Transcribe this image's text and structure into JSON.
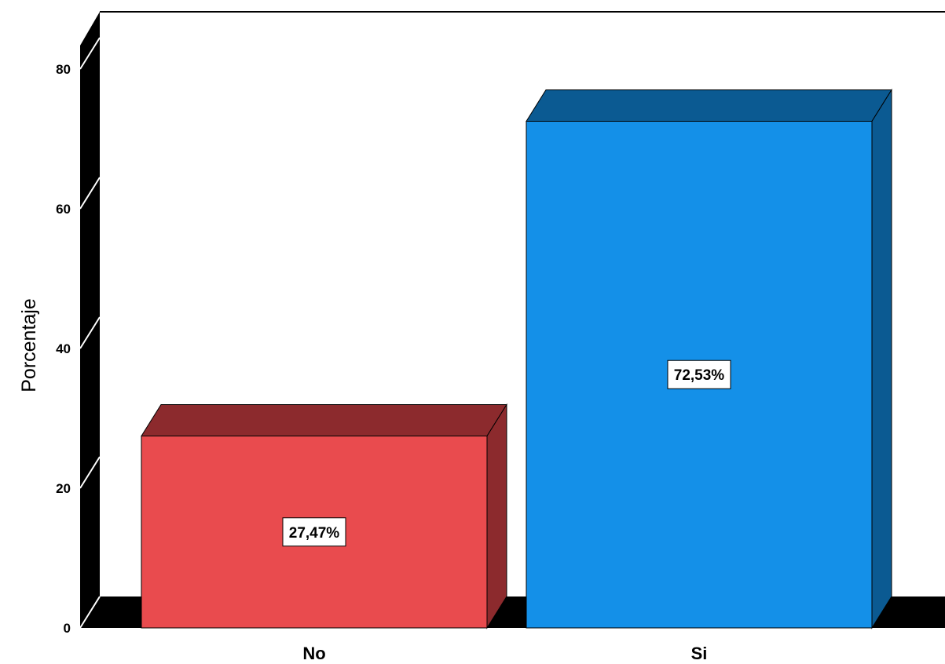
{
  "chart_data": {
    "type": "bar",
    "style": "3d",
    "categories": [
      "No",
      "Si"
    ],
    "values": [
      27.47,
      72.53
    ],
    "data_labels": [
      "27,47%",
      "72,53%"
    ],
    "colors": [
      "#e94b4e",
      "#1490e8"
    ],
    "side_colors": [
      "#8c2a2d",
      "#0b5a92"
    ],
    "title": "",
    "xlabel": "",
    "ylabel": "Porcentaje",
    "ylim": [
      0,
      80
    ],
    "yticks": [
      0,
      20,
      40,
      60,
      80
    ],
    "grid": false,
    "legend": "none"
  }
}
